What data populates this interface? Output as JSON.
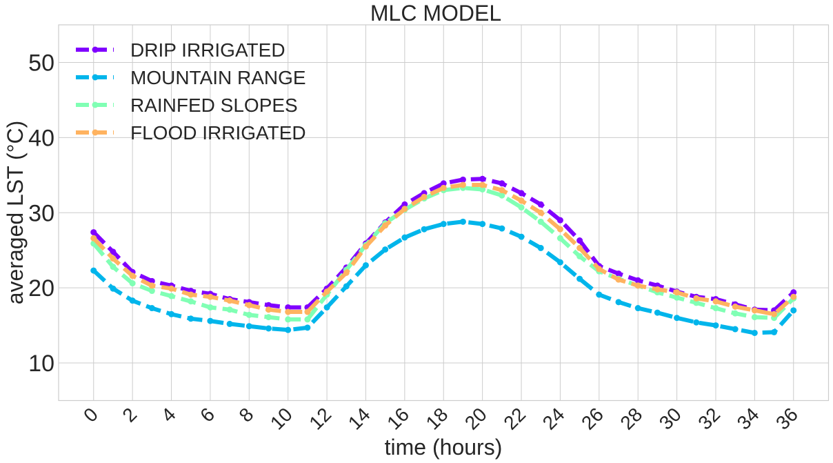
{
  "chart_data": {
    "type": "line",
    "title": "MLC MODEL",
    "xlabel": "time (hours)",
    "ylabel": "averaged LST (°C)",
    "x": [
      0,
      1,
      2,
      3,
      4,
      5,
      6,
      7,
      8,
      9,
      10,
      11,
      12,
      13,
      14,
      15,
      16,
      17,
      18,
      19,
      20,
      21,
      22,
      23,
      24,
      25,
      26,
      27,
      28,
      29,
      30,
      31,
      32,
      33,
      34,
      35,
      36
    ],
    "xticks": [
      0,
      2,
      4,
      6,
      8,
      10,
      12,
      14,
      16,
      18,
      20,
      22,
      24,
      26,
      28,
      30,
      32,
      34,
      36
    ],
    "xtick_labels": [
      "0",
      "2",
      "4",
      "6",
      "8",
      "10",
      "12",
      "14",
      "16",
      "18",
      "20",
      "22",
      "24",
      "26",
      "28",
      "30",
      "32",
      "34",
      "36"
    ],
    "yticks": [
      10,
      20,
      30,
      40,
      50
    ],
    "ytick_labels": [
      "10",
      "20",
      "30",
      "40",
      "50"
    ],
    "xlim": [
      -1.8,
      37.8
    ],
    "ylim": [
      5,
      55
    ],
    "grid": true,
    "legend_position": "top-left",
    "line_style": "dashed",
    "marker": "circle",
    "series": [
      {
        "name": "DRIP IRRIGATED",
        "color": "#8000ff",
        "values": [
          27.4,
          24.8,
          22.1,
          20.9,
          20.3,
          19.6,
          19.2,
          18.5,
          18.1,
          17.7,
          17.4,
          17.4,
          19.9,
          22.7,
          25.9,
          28.7,
          31.1,
          32.6,
          33.9,
          34.4,
          34.5,
          33.9,
          32.6,
          31.1,
          29.0,
          26.3,
          22.9,
          21.9,
          21.0,
          20.3,
          19.5,
          18.8,
          18.5,
          17.8,
          17.1,
          17.0,
          19.4
        ]
      },
      {
        "name": "MOUNTAIN RANGE",
        "color": "#00b5eb",
        "values": [
          22.3,
          19.9,
          18.3,
          17.3,
          16.5,
          15.9,
          15.6,
          15.2,
          14.9,
          14.6,
          14.4,
          14.7,
          17.4,
          20.2,
          23.0,
          25.1,
          26.7,
          27.8,
          28.5,
          28.8,
          28.5,
          27.9,
          26.8,
          25.3,
          23.4,
          21.2,
          19.1,
          18.1,
          17.3,
          16.7,
          16.0,
          15.4,
          15.0,
          14.5,
          14.0,
          14.1,
          17.0
        ]
      },
      {
        "name": "RAINFED SLOPES",
        "color": "#80ffb4",
        "values": [
          25.9,
          22.8,
          20.6,
          19.6,
          18.9,
          18.2,
          17.4,
          17.1,
          16.4,
          16.1,
          15.8,
          15.8,
          19.1,
          22.4,
          25.7,
          28.6,
          30.4,
          31.9,
          33.0,
          33.3,
          33.1,
          32.3,
          30.7,
          28.8,
          26.6,
          24.2,
          22.2,
          21.2,
          20.3,
          19.4,
          18.7,
          18.0,
          17.3,
          16.6,
          16.1,
          16.0,
          18.6
        ]
      },
      {
        "name": "FLOOD IRRIGATED",
        "color": "#ffb360",
        "values": [
          26.6,
          23.9,
          21.6,
          20.3,
          19.9,
          19.1,
          18.8,
          18.3,
          17.7,
          17.1,
          16.8,
          16.8,
          19.5,
          22.0,
          25.5,
          28.3,
          30.5,
          32.1,
          33.3,
          33.7,
          33.7,
          33.0,
          31.6,
          30.0,
          27.8,
          25.3,
          22.5,
          21.1,
          20.3,
          19.8,
          19.4,
          18.6,
          18.2,
          17.5,
          17.0,
          16.5,
          18.8
        ]
      }
    ]
  }
}
